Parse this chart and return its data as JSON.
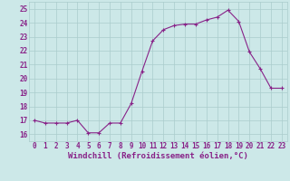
{
  "x": [
    0,
    1,
    2,
    3,
    4,
    5,
    6,
    7,
    8,
    9,
    10,
    11,
    12,
    13,
    14,
    15,
    16,
    17,
    18,
    19,
    20,
    21,
    22,
    23
  ],
  "y": [
    17.0,
    16.8,
    16.8,
    16.8,
    17.0,
    16.1,
    16.1,
    16.8,
    16.8,
    18.2,
    20.5,
    22.7,
    23.5,
    23.8,
    23.9,
    23.9,
    24.2,
    24.4,
    24.9,
    24.1,
    21.9,
    20.7,
    19.3,
    19.3
  ],
  "line_color": "#882288",
  "marker": "+",
  "marker_size": 3,
  "marker_edge_width": 0.8,
  "bg_color": "#cce8e8",
  "grid_color": "#aacccc",
  "xlabel": "Windchill (Refroidissement éolien,°C)",
  "xlim": [
    -0.5,
    23.5
  ],
  "ylim": [
    15.5,
    25.5
  ],
  "yticks": [
    16,
    17,
    18,
    19,
    20,
    21,
    22,
    23,
    24,
    25
  ],
  "xticks": [
    0,
    1,
    2,
    3,
    4,
    5,
    6,
    7,
    8,
    9,
    10,
    11,
    12,
    13,
    14,
    15,
    16,
    17,
    18,
    19,
    20,
    21,
    22,
    23
  ],
  "tick_fontsize": 5.5,
  "xlabel_fontsize": 6.5,
  "line_width": 0.8
}
